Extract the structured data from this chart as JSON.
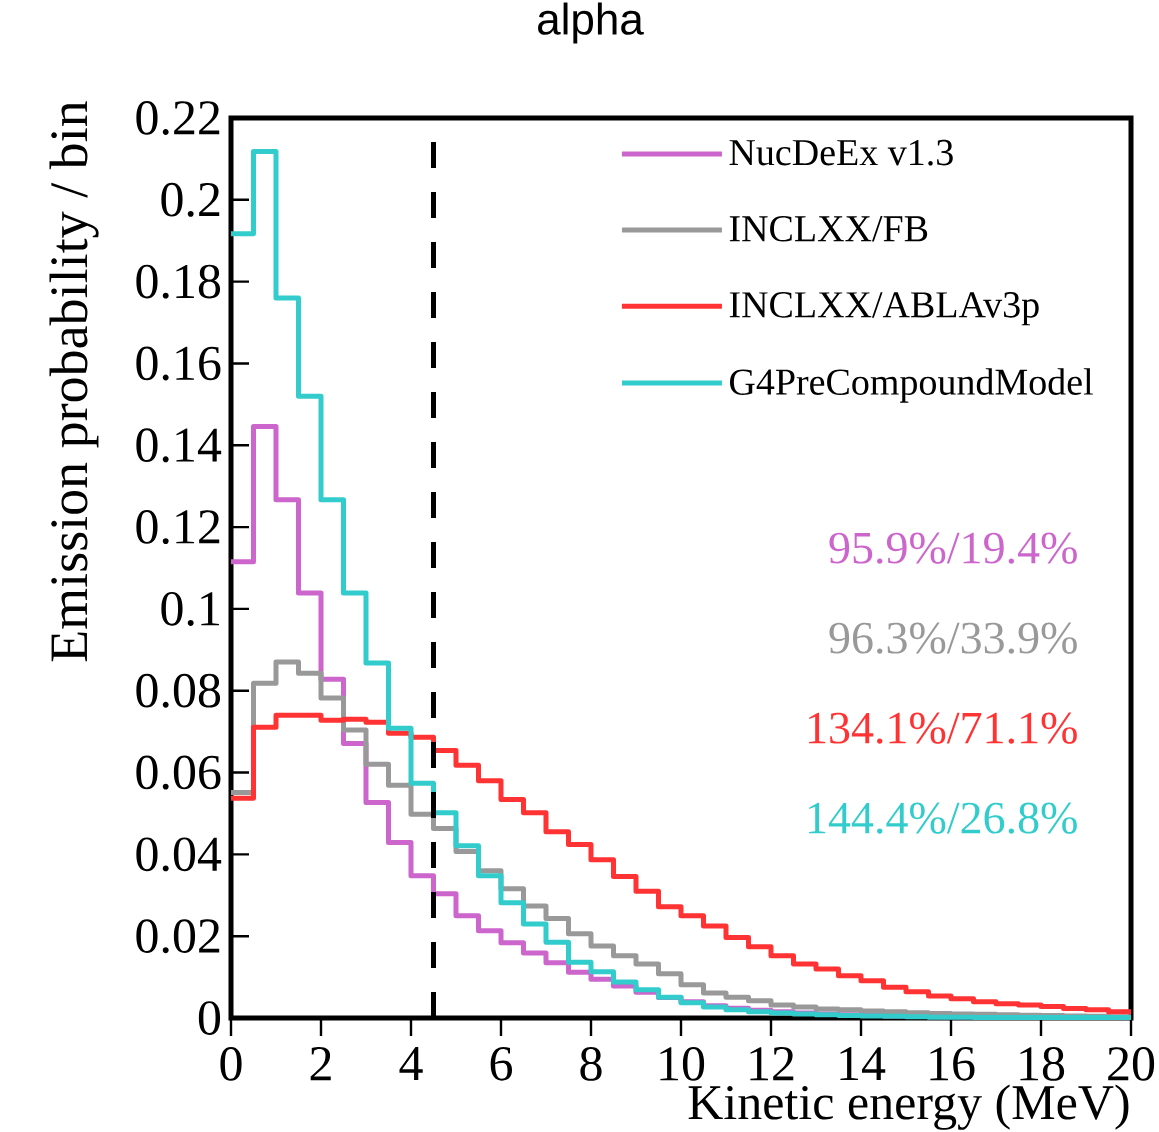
{
  "chart_data": {
    "type": "histogram",
    "title": "alpha",
    "xlabel": "Kinetic energy (MeV)",
    "ylabel": "Emission probability / bin",
    "bins": [
      0,
      0.5,
      1,
      1.5,
      2,
      2.5,
      3,
      3.5,
      4,
      4.5,
      5,
      5.5,
      6,
      6.5,
      7,
      7.5,
      8,
      8.5,
      9,
      9.5,
      10,
      10.5,
      11,
      11.5,
      12,
      12.5,
      13,
      13.5,
      14,
      14.5,
      15,
      15.5,
      16,
      16.5,
      17,
      17.5,
      18,
      18.5,
      19,
      19.5,
      20
    ],
    "series": [
      {
        "name": "NucDeEx v1.3",
        "color": "#cc66cc",
        "values": [
          0.1115,
          0.1446,
          0.1267,
          0.1039,
          0.0828,
          0.0671,
          0.0527,
          0.0429,
          0.0348,
          0.0304,
          0.025,
          0.0213,
          0.0184,
          0.0159,
          0.0135,
          0.0112,
          0.0095,
          0.0078,
          0.0063,
          0.005,
          0.004,
          0.003,
          0.0024,
          0.0019,
          0.0015,
          0.0012,
          0.001,
          0.0008,
          0.0006,
          0.0005,
          0.0004,
          0.0003,
          0.0003,
          0.0002,
          0.0002,
          0.0001,
          0.0001,
          0.0001,
          0.0001,
          0.0001
        ]
      },
      {
        "name": "INCLXX/FB",
        "color": "#999999",
        "values": [
          0.0551,
          0.0818,
          0.087,
          0.0843,
          0.0782,
          0.0704,
          0.062,
          0.0569,
          0.0498,
          0.0463,
          0.0407,
          0.036,
          0.0316,
          0.0274,
          0.0243,
          0.0206,
          0.0176,
          0.0152,
          0.0132,
          0.0108,
          0.0081,
          0.0061,
          0.0051,
          0.0042,
          0.0032,
          0.0027,
          0.0022,
          0.002,
          0.0017,
          0.0015,
          0.0013,
          0.0011,
          0.001,
          0.0009,
          0.0008,
          0.0007,
          0.0006,
          0.0005,
          0.0004,
          0.0003
        ]
      },
      {
        "name": "INCLXX/ABLAv3p",
        "color": "#ff3333",
        "values": [
          0.0537,
          0.0711,
          0.074,
          0.074,
          0.0728,
          0.073,
          0.0723,
          0.0696,
          0.0686,
          0.0654,
          0.0618,
          0.058,
          0.0534,
          0.0502,
          0.0455,
          0.0424,
          0.0387,
          0.0346,
          0.031,
          0.0272,
          0.025,
          0.0225,
          0.0197,
          0.0174,
          0.0152,
          0.0132,
          0.012,
          0.0103,
          0.0091,
          0.0075,
          0.0064,
          0.0054,
          0.0047,
          0.004,
          0.0035,
          0.0032,
          0.0028,
          0.0023,
          0.002,
          0.0015
        ]
      },
      {
        "name": "G4PreCompoundModel",
        "color": "#33cccc",
        "values": [
          0.1917,
          0.2118,
          0.176,
          0.152,
          0.1267,
          0.1039,
          0.0868,
          0.0708,
          0.0574,
          0.0502,
          0.0421,
          0.0348,
          0.0282,
          0.023,
          0.0185,
          0.0136,
          0.0113,
          0.0088,
          0.0069,
          0.0051,
          0.0037,
          0.0027,
          0.002,
          0.0015,
          0.0012,
          0.001,
          0.0008,
          0.0006,
          0.0005,
          0.0004,
          0.0003,
          0.0002,
          0.0002,
          0.0001,
          0.0001,
          0.0001,
          0.0001,
          0.0001,
          0.0001,
          0.0001
        ]
      }
    ],
    "xlim": [
      0,
      20
    ],
    "ylim": [
      0,
      0.22
    ],
    "xticks": [
      0,
      2,
      4,
      6,
      8,
      10,
      12,
      14,
      16,
      18,
      20
    ],
    "yticks": [
      0,
      0.02,
      0.04,
      0.06,
      0.08,
      0.1,
      0.12,
      0.14,
      0.16,
      0.18,
      0.2,
      0.22
    ],
    "ref_lines": [
      {
        "axis": "x",
        "value": 4.5,
        "color": "#000000",
        "line_style": "dashed"
      }
    ],
    "annotations": [
      "95.9%/19.4%",
      "96.3%/33.9%",
      "134.1%/71.1%",
      "144.4%/26.8%"
    ],
    "legend": "top right"
  }
}
